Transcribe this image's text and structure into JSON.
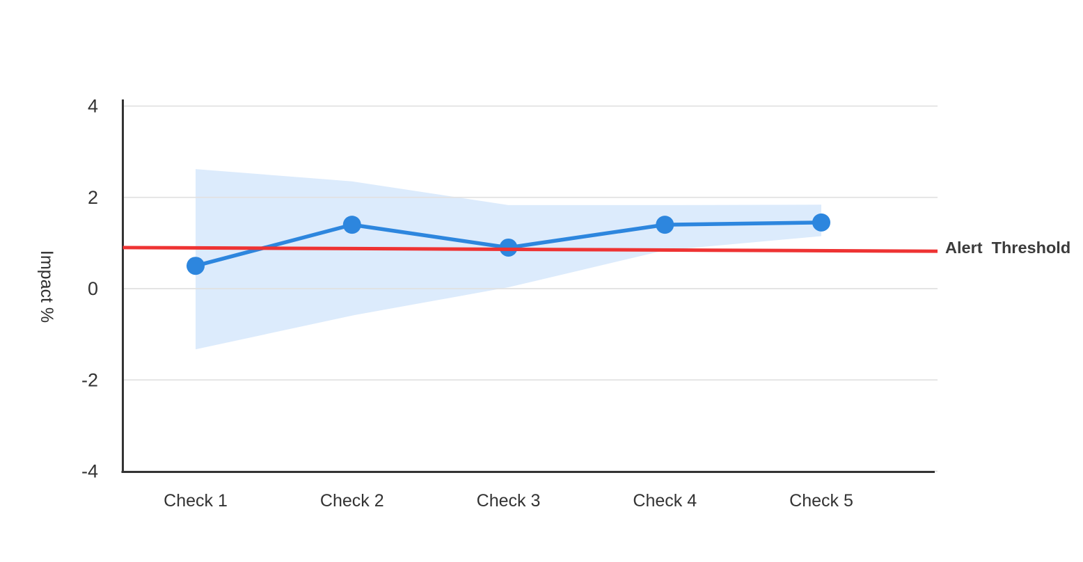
{
  "chart_data": {
    "type": "line",
    "title": "",
    "categories": [
      "Check 1",
      "Check 2",
      "Check 3",
      "Check 4",
      "Check 5"
    ],
    "series": [
      {
        "name": "Impact",
        "color": "#2d86de",
        "marker": "circle",
        "values": [
          0.5,
          1.4,
          0.9,
          1.4,
          1.45
        ]
      }
    ],
    "band": {
      "name": "confidence-band",
      "color": "#dcebfc",
      "upper": [
        2.62,
        2.35,
        1.83,
        1.83,
        1.84
      ],
      "lower": [
        -1.33,
        -0.59,
        0.03,
        0.84,
        1.15
      ]
    },
    "threshold": {
      "label": "Alert  Threshold",
      "color": "#ee3333",
      "label_color": "#3b3b3b",
      "start": 0.9,
      "end": 0.82
    },
    "ylabel": "Impact %",
    "xlabel": "",
    "yticks": [
      4,
      2,
      0,
      -2,
      -4
    ],
    "ylim": [
      -4,
      4
    ],
    "grid": true,
    "legend": "none",
    "colors": {
      "axis": "#333333",
      "grid": "#e1e1e1",
      "tick_text": "#333333",
      "background": "#ffffff"
    }
  }
}
